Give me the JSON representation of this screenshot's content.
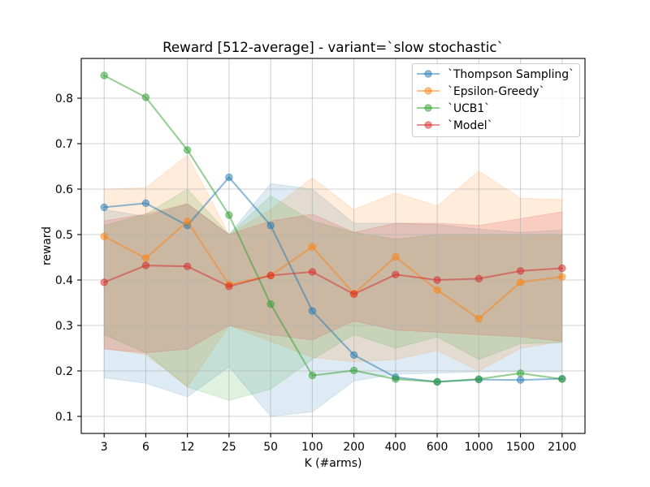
{
  "chart_data": {
    "type": "line",
    "title": "Reward [512-average] - variant=`slow stochastic`",
    "xlabel": "K (#arms)",
    "ylabel": "reward",
    "categories": [
      "3",
      "6",
      "12",
      "25",
      "50",
      "100",
      "200",
      "400",
      "600",
      "1000",
      "1500",
      "2100"
    ],
    "yticks": [
      0.1,
      0.2,
      0.3,
      0.4,
      0.5,
      0.6,
      0.7,
      0.8
    ],
    "ylim": [
      0.0625,
      0.8875
    ],
    "grid": true,
    "legend": "top-right",
    "series": [
      {
        "name": "`Thompson Sampling`",
        "color": "#1f77b4",
        "values": [
          0.56,
          0.569,
          0.52,
          0.626,
          0.52,
          0.332,
          0.235,
          0.186,
          0.176,
          0.181,
          0.18,
          0.183
        ],
        "band_lower": [
          0.185,
          0.173,
          0.143,
          0.209,
          0.1,
          0.11,
          0.178,
          0.193,
          0.195,
          0.198,
          0.198,
          0.198
        ],
        "band_upper": [
          0.555,
          0.54,
          0.567,
          0.5,
          0.612,
          0.6,
          0.525,
          0.525,
          0.522,
          0.512,
          0.505,
          0.51
        ]
      },
      {
        "name": "`Epsilon-Greedy`",
        "color": "#ff7f0e",
        "values": [
          0.496,
          0.448,
          0.529,
          0.39,
          0.41,
          0.473,
          0.37,
          0.451,
          0.378,
          0.315,
          0.395,
          0.407
        ],
        "band_lower": [
          0.25,
          0.236,
          0.165,
          0.3,
          0.265,
          0.23,
          0.22,
          0.225,
          0.245,
          0.2,
          0.25,
          0.265
        ],
        "band_upper": [
          0.6,
          0.603,
          0.675,
          0.5,
          0.555,
          0.625,
          0.555,
          0.592,
          0.563,
          0.64,
          0.58,
          0.577
        ]
      },
      {
        "name": "`UCB1`",
        "color": "#2ca02c",
        "values": [
          0.85,
          0.802,
          0.686,
          0.543,
          0.347,
          0.19,
          0.201,
          0.182,
          0.176,
          0.182,
          0.195,
          0.182
        ],
        "band_lower": [
          0.28,
          0.24,
          0.165,
          0.135,
          0.16,
          0.225,
          0.28,
          0.25,
          0.275,
          0.225,
          0.26,
          0.262
        ],
        "band_upper": [
          0.52,
          0.545,
          0.6,
          0.5,
          0.585,
          0.53,
          0.505,
          0.49,
          0.5,
          0.5,
          0.5,
          0.5
        ]
      },
      {
        "name": "`Model`",
        "color": "#d62728",
        "values": [
          0.395,
          0.432,
          0.43,
          0.386,
          0.41,
          0.418,
          0.369,
          0.412,
          0.4,
          0.403,
          0.42,
          0.426
        ],
        "band_lower": [
          0.248,
          0.24,
          0.248,
          0.3,
          0.28,
          0.268,
          0.31,
          0.29,
          0.285,
          0.28,
          0.275,
          0.265
        ],
        "band_upper": [
          0.53,
          0.545,
          0.568,
          0.5,
          0.53,
          0.545,
          0.505,
          0.525,
          0.525,
          0.52,
          0.535,
          0.55
        ]
      }
    ]
  }
}
